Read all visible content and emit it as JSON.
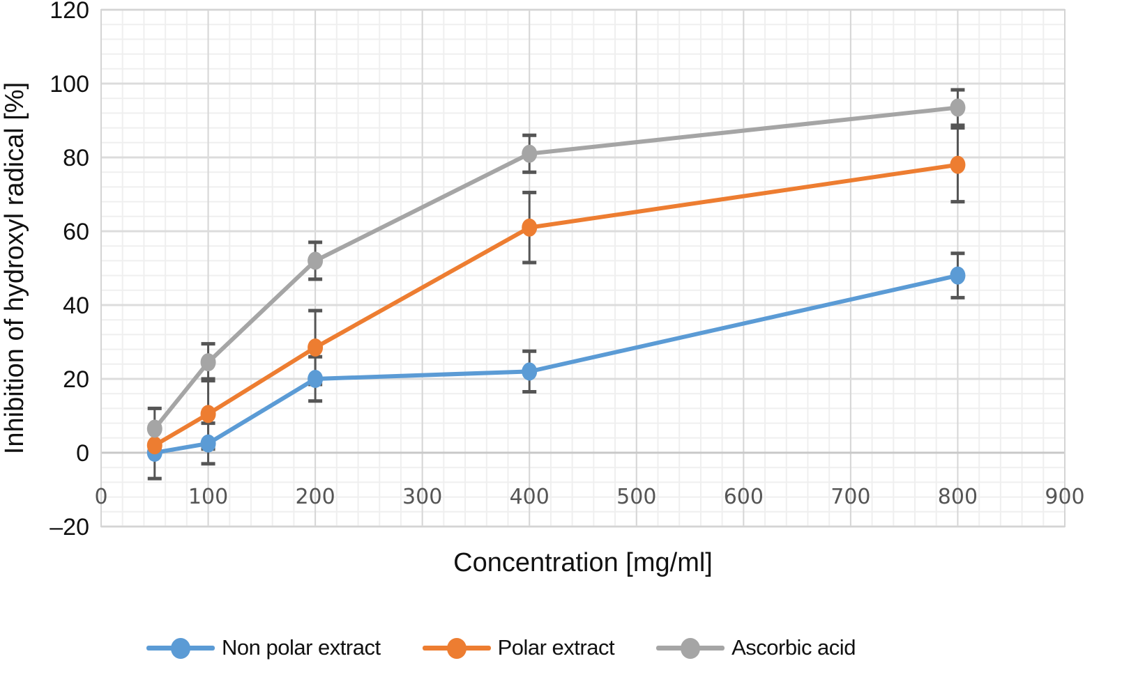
{
  "chart_data": {
    "type": "line",
    "title": "",
    "xlabel": "Concentration [mg/ml]",
    "ylabel": "Inhibition of hydroxyl radical [%]",
    "xlim": [
      0,
      900
    ],
    "ylim": [
      -20,
      120
    ],
    "x_ticks": [
      "0",
      "100",
      "200",
      "300",
      "400",
      "500",
      "600",
      "700",
      "800",
      "900"
    ],
    "y_ticks": [
      "120",
      "100",
      "80",
      "60",
      "40",
      "20",
      "0",
      "–20"
    ],
    "grid": true,
    "legend_position": "bottom",
    "x": [
      50,
      100,
      200,
      400,
      800
    ],
    "series": [
      {
        "name": "Non polar extract",
        "color": "#5B9BD5",
        "values": [
          0,
          2.5,
          20,
          22,
          48
        ],
        "error": [
          7,
          5.5,
          6,
          5.5,
          6
        ]
      },
      {
        "name": "Polar extract",
        "color": "#ED7D31",
        "values": [
          2,
          10.5,
          28.5,
          61,
          78
        ],
        "error": [
          0,
          9.5,
          10,
          9.5,
          10
        ]
      },
      {
        "name": "Ascorbic acid",
        "color": "#A5A5A5",
        "values": [
          6.5,
          24.5,
          52,
          81,
          93.5
        ],
        "error": [
          5.5,
          5,
          5,
          5,
          4.8
        ]
      }
    ],
    "error_bar_color": "#555555"
  }
}
